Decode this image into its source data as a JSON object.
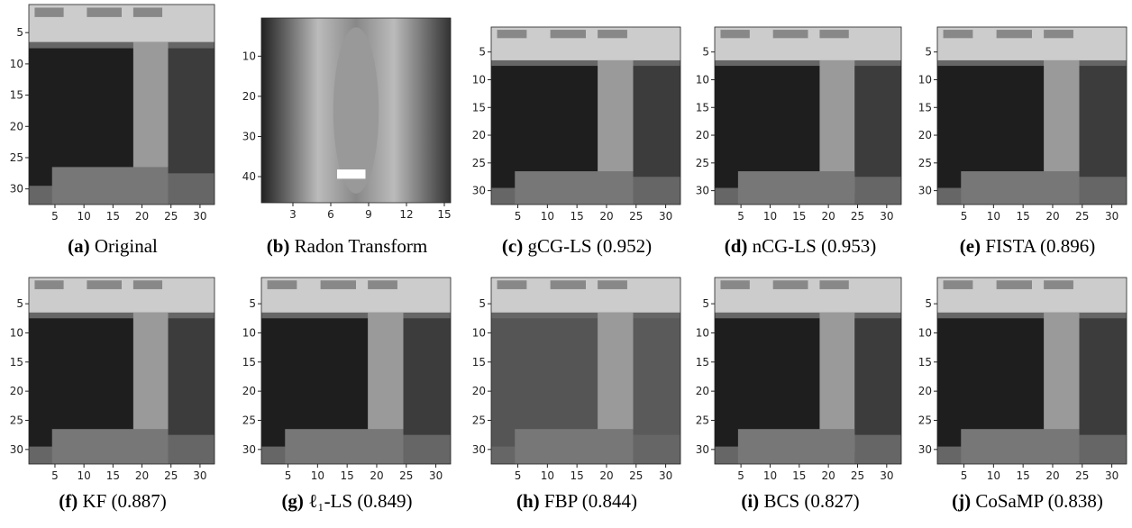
{
  "panels": [
    {
      "label": "(a)",
      "caption": "Original",
      "xlim": [
        0.5,
        32.5
      ],
      "ylim": [
        0.5,
        32.5
      ],
      "xticks": [
        5,
        10,
        15,
        20,
        25,
        30
      ],
      "yticks": [
        5,
        10,
        15,
        20,
        25,
        30
      ]
    },
    {
      "label": "(b)",
      "caption": "Radon Transform",
      "xlim": [
        0.5,
        15.5
      ],
      "ylim": [
        0.5,
        46.5
      ],
      "xticks": [
        3,
        6,
        9,
        12,
        15
      ],
      "yticks": [
        10,
        20,
        30,
        40
      ]
    },
    {
      "label": "(c)",
      "caption": "gCG-LS (0.952)",
      "xlim": [
        0.5,
        32.5
      ],
      "ylim": [
        0.5,
        32.5
      ],
      "xticks": [
        5,
        10,
        15,
        20,
        25,
        30
      ],
      "yticks": [
        5,
        10,
        15,
        20,
        25,
        30
      ]
    },
    {
      "label": "(d)",
      "caption": "nCG-LS (0.953)",
      "xlim": [
        0.5,
        32.5
      ],
      "ylim": [
        0.5,
        32.5
      ],
      "xticks": [
        5,
        10,
        15,
        20,
        25,
        30
      ],
      "yticks": [
        5,
        10,
        15,
        20,
        25,
        30
      ]
    },
    {
      "label": "(e)",
      "caption": "FISTA (0.896)",
      "xlim": [
        0.5,
        32.5
      ],
      "ylim": [
        0.5,
        32.5
      ],
      "xticks": [
        5,
        10,
        15,
        20,
        25,
        30
      ],
      "yticks": [
        5,
        10,
        15,
        20,
        25,
        30
      ]
    },
    {
      "label": "(f)",
      "caption": "KF (0.887)",
      "xlim": [
        0.5,
        32.5
      ],
      "ylim": [
        0.5,
        32.5
      ],
      "xticks": [
        5,
        10,
        15,
        20,
        25,
        30
      ],
      "yticks": [
        5,
        10,
        15,
        20,
        25,
        30
      ]
    },
    {
      "label": "(g)",
      "caption": "ℓ₁-LS (0.849)",
      "xlim": [
        0.5,
        32.5
      ],
      "ylim": [
        0.5,
        32.5
      ],
      "xticks": [
        5,
        10,
        15,
        20,
        25,
        30
      ],
      "yticks": [
        5,
        10,
        15,
        20,
        25,
        30
      ]
    },
    {
      "label": "(h)",
      "caption": "FBP (0.844)",
      "xlim": [
        0.5,
        32.5
      ],
      "ylim": [
        0.5,
        32.5
      ],
      "xticks": [
        5,
        10,
        15,
        20,
        25,
        30
      ],
      "yticks": [
        5,
        10,
        15,
        20,
        25,
        30
      ]
    },
    {
      "label": "(i)",
      "caption": "BCS (0.827)",
      "xlim": [
        0.5,
        32.5
      ],
      "ylim": [
        0.5,
        32.5
      ],
      "xticks": [
        5,
        10,
        15,
        20,
        25,
        30
      ],
      "yticks": [
        5,
        10,
        15,
        20,
        25,
        30
      ]
    },
    {
      "label": "(j)",
      "caption": "CoSaMP (0.838)",
      "xlim": [
        0.5,
        32.5
      ],
      "ylim": [
        0.5,
        32.5
      ],
      "xticks": [
        5,
        10,
        15,
        20,
        25,
        30
      ],
      "yticks": [
        5,
        10,
        15,
        20,
        25,
        30
      ]
    }
  ]
}
